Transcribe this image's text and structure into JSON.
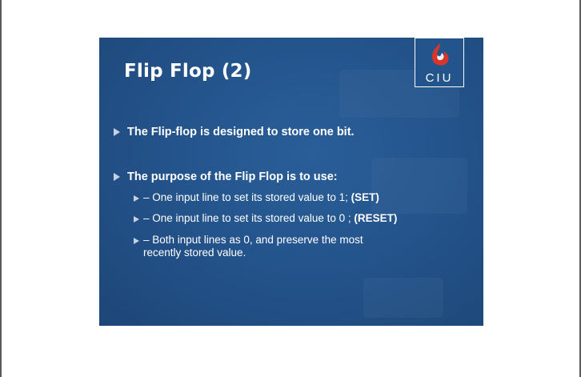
{
  "slide": {
    "title": "Flip Flop (2)",
    "logo_text": "CIU",
    "bullets": [
      {
        "text": "The Flip-flop is designed to store one bit."
      },
      {
        "text": "The purpose of the Flip Flop is to use:"
      }
    ],
    "sub_bullets": [
      {
        "text": "– One input line to set its stored value to 1; ",
        "bold": "(SET)"
      },
      {
        "text": "– One input line to set its stored value to 0 ; ",
        "bold": "(RESET)"
      },
      {
        "line1": "– Both input lines as 0, and preserve the most",
        "line2": "recently stored value."
      }
    ]
  },
  "colors": {
    "slide_background": "#24548c",
    "text": "#ffffff",
    "bullet_arrow": "#c6d2e2",
    "logo_red": "#d9362b"
  },
  "icons": {
    "bullet": "triangle-right-icon",
    "logo": "ciu-flame-logo"
  }
}
